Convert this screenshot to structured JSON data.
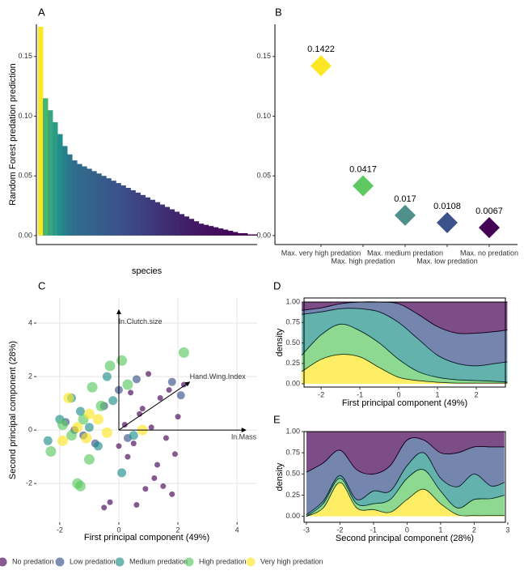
{
  "chart_data": [
    {
      "type": "bar",
      "panel_label": "A",
      "y_label": "Random Forest predation prediction",
      "x_label": "species",
      "values": [
        0.175,
        0.115,
        0.105,
        0.095,
        0.085,
        0.075,
        0.068,
        0.063,
        0.06,
        0.058,
        0.056,
        0.054,
        0.052,
        0.05,
        0.048,
        0.046,
        0.044,
        0.042,
        0.04,
        0.038,
        0.036,
        0.034,
        0.032,
        0.03,
        0.028,
        0.026,
        0.024,
        0.022,
        0.02,
        0.018,
        0.016,
        0.014,
        0.012,
        0.01,
        0.009,
        0.008,
        0.007,
        0.006,
        0.005,
        0.004,
        0.003,
        0.002,
        0.002,
        0.001,
        0.001
      ],
      "palette": [
        "#440154",
        "#3b528b",
        "#21918c",
        "#5ec962",
        "#fde725"
      ],
      "ylim": [
        -0.0075,
        0.177
      ],
      "yticks": [
        {
          "value": 0,
          "label": "0.00"
        },
        0.05,
        {
          "value": 0.1,
          "label": "0.10"
        },
        0.15
      ]
    },
    {
      "type": "diamond",
      "panel_label": "B",
      "categories": [
        "Max. very high predation",
        "Max. high predation",
        "Max. medium predation",
        "Max. low predation",
        "Max. no predation"
      ],
      "values": [
        0.1422,
        0.0417,
        0.017,
        0.0108,
        0.0067
      ],
      "colors": [
        "#fde725",
        "#5ec962",
        "#4f8f8c",
        "#3b528b",
        "#440154"
      ],
      "ylim": [
        -0.0075,
        0.177
      ],
      "yticks": [
        {
          "value": 0,
          "label": "0.00"
        },
        0.05,
        {
          "value": 0.1,
          "label": "0.10"
        },
        0.15
      ]
    },
    {
      "type": "scatter",
      "panel_label": "C",
      "x_label": "First principal component (49%)",
      "y_label": "Second principal component (28%)",
      "xlim": [
        -2.79,
        4.68
      ],
      "ylim": [
        -3.45,
        4.94
      ],
      "xticks": [
        -2,
        0,
        2,
        4
      ],
      "yticks": [
        -2,
        0,
        2,
        4
      ],
      "grid": true,
      "legend": "bottom",
      "series": [
        {
          "name": "No predation",
          "color": "#440154",
          "x": [
            0.2,
            0.5,
            0.8,
            1.1,
            1.4,
            1.7,
            2.0,
            0.3,
            0.9,
            1.5,
            0.6,
            1.2,
            1.8,
            0.4,
            1.0,
            -0.3,
            -0.5,
            0.0,
            1.6,
            2.2,
            0.7,
            1.3,
            1.9
          ],
          "y": [
            0.2,
            -0.5,
            0.8,
            0.1,
            1.2,
            1.5,
            0.5,
            -1.0,
            -2.2,
            -2.1,
            -2.8,
            -1.8,
            -2.4,
            1.4,
            2.1,
            -2.7,
            -2.9,
            -0.6,
            -0.3,
            1.7,
            0.6,
            -1.3,
            -0.9
          ]
        },
        {
          "name": "Low predation",
          "color": "#3b528b",
          "x": [
            -1.8,
            -1.2,
            -0.5,
            0.0,
            0.6,
            1.8,
            2.1,
            -1.5,
            -0.8,
            0.3
          ],
          "y": [
            0.3,
            -0.2,
            0.9,
            1.5,
            1.9,
            1.8,
            1.3,
            0.0,
            -0.5,
            -0.3
          ]
        },
        {
          "name": "Medium predation",
          "color": "#21918c",
          "x": [
            -2.4,
            -2.0,
            -1.3,
            -0.7,
            -0.2,
            0.5,
            -1.6,
            -1.0,
            0.1,
            -0.4
          ],
          "y": [
            -0.4,
            0.4,
            0.7,
            -0.6,
            1.1,
            -0.2,
            1.2,
            0.1,
            -1.6,
            2.0
          ]
        },
        {
          "name": "High predation",
          "color": "#5ec962",
          "x": [
            -2.3,
            -1.6,
            -1.2,
            -0.9,
            -0.3,
            0.3,
            2.2,
            -1.3,
            -1.0,
            -0.6,
            0.1,
            -1.9,
            -1.4
          ],
          "y": [
            -0.8,
            -0.2,
            0.4,
            1.6,
            2.4,
            1.7,
            2.9,
            -2.1,
            -1.1,
            0.9,
            2.6,
            0.2,
            -2.0
          ]
        },
        {
          "name": "Very high predation",
          "color": "#fde725",
          "x": [
            -1.7,
            -1.4,
            -1.1,
            -0.7,
            -0.4,
            0.8,
            -1.9,
            -1.0
          ],
          "y": [
            1.2,
            0.1,
            -0.3,
            0.4,
            -0.1,
            0.0,
            -0.4,
            0.6
          ]
        }
      ],
      "loadings": [
        {
          "label": "ln.Clutch.size",
          "x": 0,
          "y": 4.5
        },
        {
          "label": "Hand.Wing.Index",
          "x": 2.4,
          "y": 1.8
        },
        {
          "label": "ln.Mass",
          "x": 4.3,
          "y": 0
        }
      ]
    },
    {
      "type": "stacked-area",
      "panel_label": "D",
      "x_label": "First principal component (49%)",
      "y_label": "density",
      "x": [
        -2.5,
        -2,
        -1.5,
        -1,
        -0.5,
        0,
        0.5,
        1,
        1.5,
        2,
        2.5,
        2.8
      ],
      "xlim": [
        -2.44,
        2.75
      ],
      "ylim": [
        -0.04,
        1.05
      ],
      "xticks": [
        -2,
        -1,
        0,
        1,
        2
      ],
      "yticks": [
        {
          "value": 0,
          "label": "0.00"
        },
        0.25,
        {
          "value": 0.5,
          "label": "0.50"
        },
        0.75,
        {
          "value": 1,
          "label": "1.00"
        }
      ],
      "series": [
        {
          "name": "No predation",
          "color": "#440154",
          "values": [
            0.1,
            0.07,
            0.02,
            0,
            0,
            0.02,
            0.15,
            0.3,
            0.38,
            0.38,
            0.36,
            0.34
          ]
        },
        {
          "name": "Low predation",
          "color": "#3b528b",
          "values": [
            0.05,
            0.05,
            0.06,
            0.08,
            0.12,
            0.23,
            0.3,
            0.35,
            0.37,
            0.4,
            0.39,
            0.39
          ]
        },
        {
          "name": "Medium predation",
          "color": "#21918c",
          "values": [
            0.5,
            0.28,
            0.19,
            0.27,
            0.38,
            0.45,
            0.4,
            0.27,
            0.2,
            0.18,
            0.22,
            0.25
          ]
        },
        {
          "name": "High predation",
          "color": "#5ec962",
          "values": [
            0.2,
            0.3,
            0.37,
            0.32,
            0.3,
            0.22,
            0.11,
            0.06,
            0.04,
            0.03,
            0.02,
            0.01
          ]
        },
        {
          "name": "Very high predation",
          "color": "#fde725",
          "values": [
            0.15,
            0.3,
            0.36,
            0.33,
            0.2,
            0.08,
            0.04,
            0.02,
            0.01,
            0.01,
            0.01,
            0.01
          ]
        }
      ]
    },
    {
      "type": "stacked-area",
      "panel_label": "E",
      "x_label": "Second principal component (28%)",
      "y_label": "density",
      "x": [
        -3,
        -2.5,
        -2,
        -1.5,
        -1,
        -0.5,
        0,
        0.5,
        1,
        1.5,
        2,
        2.5,
        2.9
      ],
      "xlim": [
        -3.07,
        2.93
      ],
      "ylim": [
        -0.07,
        1.0
      ],
      "xticks": [
        -3,
        -2,
        -1,
        0,
        1,
        2,
        3
      ],
      "yticks": [
        {
          "value": 0,
          "label": "0.00"
        },
        0.25,
        {
          "value": 0.5,
          "label": "0.50"
        },
        0.75,
        {
          "value": 1,
          "label": "1.00"
        }
      ],
      "series": [
        {
          "name": "No predation",
          "color": "#440154",
          "values": [
            0.48,
            0.37,
            0.22,
            0.45,
            0.5,
            0.4,
            0.1,
            0.1,
            0.25,
            0.25,
            0.18,
            0.18,
            0.18
          ]
        },
        {
          "name": "Low predation",
          "color": "#3b528b",
          "values": [
            0.5,
            0.45,
            0.3,
            0.35,
            0.2,
            0.3,
            0.3,
            0.15,
            0.3,
            0.4,
            0.32,
            0.46,
            0.42
          ]
        },
        {
          "name": "Medium predation",
          "color": "#21918c",
          "values": [
            0.02,
            0.03,
            0.03,
            0.05,
            0.15,
            0.1,
            0.15,
            0.2,
            0.15,
            0.25,
            0.3,
            0.15,
            0.15
          ]
        },
        {
          "name": "High predation",
          "color": "#5ec962",
          "values": [
            0,
            0.05,
            0.05,
            0.05,
            0.07,
            0.15,
            0.25,
            0.23,
            0.15,
            0.08,
            0.19,
            0.2,
            0.24
          ]
        },
        {
          "name": "Very high predation",
          "color": "#fde725",
          "values": [
            0,
            0.1,
            0.4,
            0.1,
            0.08,
            0.05,
            0.2,
            0.32,
            0.15,
            0.02,
            0.01,
            0.01,
            0.01
          ]
        }
      ]
    }
  ]
}
